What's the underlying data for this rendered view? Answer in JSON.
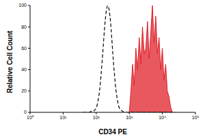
{
  "chart_data": {
    "type": "line",
    "xlabel": "CD34 PE",
    "ylabel": "Relative Cell Count",
    "log": "x",
    "grid": false,
    "x": [
      39.8,
      44.7,
      50.1,
      56.2,
      63.1,
      70.8,
      79.4,
      89.1,
      100,
      112,
      126,
      141,
      158,
      178,
      200,
      224,
      251,
      282,
      316,
      355,
      398,
      447,
      501,
      562,
      631,
      708,
      794,
      891,
      1000,
      1120,
      1260,
      1410,
      1580,
      1780,
      2000,
      2240,
      2510,
      2820,
      3160,
      3550,
      3980,
      4470,
      5010,
      5620,
      6310,
      7080,
      7940,
      8910,
      10000,
      11200,
      12600,
      14100,
      15800,
      17800,
      20000,
      22400,
      25100
    ],
    "xlim": [
      1,
      100000
    ],
    "xticks": [
      {
        "value": 1,
        "label": "10⁰"
      },
      {
        "value": 10,
        "label": "10¹"
      },
      {
        "value": 100,
        "label": "10²"
      },
      {
        "value": 1000,
        "label": "10³"
      },
      {
        "value": 10000,
        "label": "10⁴"
      },
      {
        "value": 100000,
        "label": "10⁵"
      }
    ],
    "ylim": [
      0,
      100
    ],
    "yticks": [
      0,
      20,
      40,
      60,
      80,
      100
    ],
    "series": [
      {
        "color": "#000000",
        "line_style": "dashed",
        "type": "line",
        "values": [
          0,
          0,
          0,
          0,
          0,
          1,
          1,
          2,
          4,
          10,
          20,
          36,
          56,
          78,
          94,
          100,
          94,
          78,
          56,
          36,
          20,
          10,
          4,
          2,
          1,
          0,
          0,
          0,
          0,
          0,
          0,
          0,
          0,
          0,
          0,
          0,
          0,
          0,
          0,
          0,
          0,
          0,
          0,
          0,
          0,
          0,
          0,
          0,
          0,
          0,
          0,
          0,
          0,
          0,
          0,
          0,
          0
        ]
      },
      {
        "color": "#e0202a",
        "line_style": "solid",
        "type": "area",
        "values": [
          null,
          null,
          null,
          null,
          null,
          null,
          null,
          null,
          null,
          null,
          null,
          null,
          null,
          null,
          null,
          null,
          null,
          null,
          null,
          null,
          null,
          null,
          null,
          null,
          null,
          null,
          null,
          null,
          0,
          20,
          45,
          25,
          60,
          40,
          70,
          45,
          80,
          55,
          60,
          85,
          50,
          75,
          100,
          65,
          90,
          55,
          70,
          40,
          60,
          30,
          45,
          20,
          15,
          5,
          0,
          null,
          null
        ]
      }
    ]
  }
}
